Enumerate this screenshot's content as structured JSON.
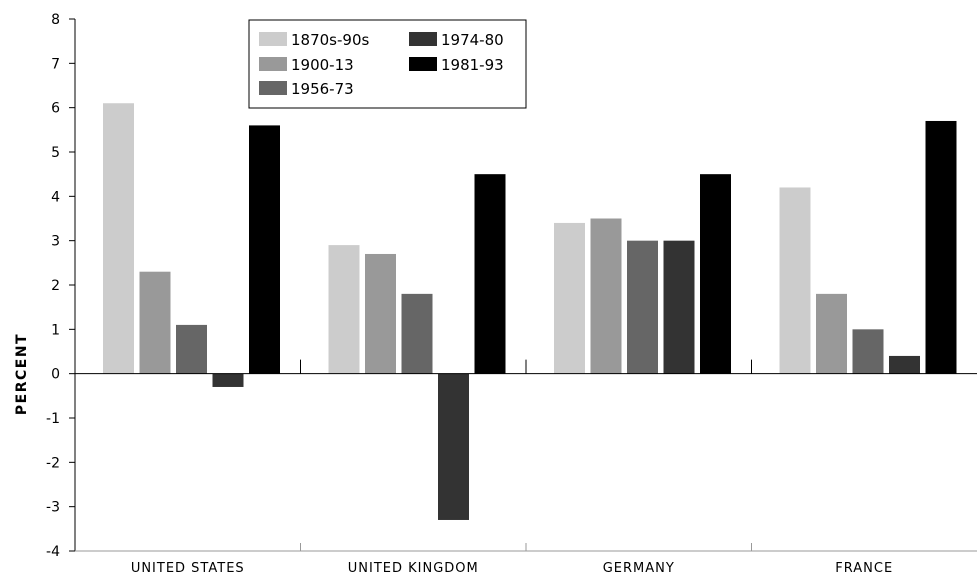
{
  "chart_data": {
    "type": "bar",
    "ylabel": "PERCENT",
    "ylim": [
      -4,
      8
    ],
    "yticks": [
      "8",
      "7",
      "6",
      "5",
      "4",
      "3",
      "2",
      "1",
      "0",
      "-1",
      "-2",
      "-3",
      "-4"
    ],
    "categories": [
      "UNITED STATES",
      "UNITED KINGDOM",
      "GERMANY",
      "FRANCE"
    ],
    "series": [
      {
        "name": "1870s-90s",
        "color": "#cccccc",
        "values": [
          6.1,
          2.9,
          3.4,
          4.2
        ]
      },
      {
        "name": "1900-13",
        "color": "#999999",
        "values": [
          2.3,
          2.7,
          3.5,
          1.8
        ]
      },
      {
        "name": "1956-73",
        "color": "#666666",
        "values": [
          1.1,
          1.8,
          3.0,
          1.0
        ]
      },
      {
        "name": "1974-80",
        "color": "#333333",
        "values": [
          -0.3,
          -3.3,
          3.0,
          0.4
        ]
      },
      {
        "name": "1981-93",
        "color": "#000000",
        "values": [
          5.6,
          4.5,
          4.5,
          5.7
        ]
      }
    ],
    "legend_position": "top-center",
    "grid": false
  }
}
